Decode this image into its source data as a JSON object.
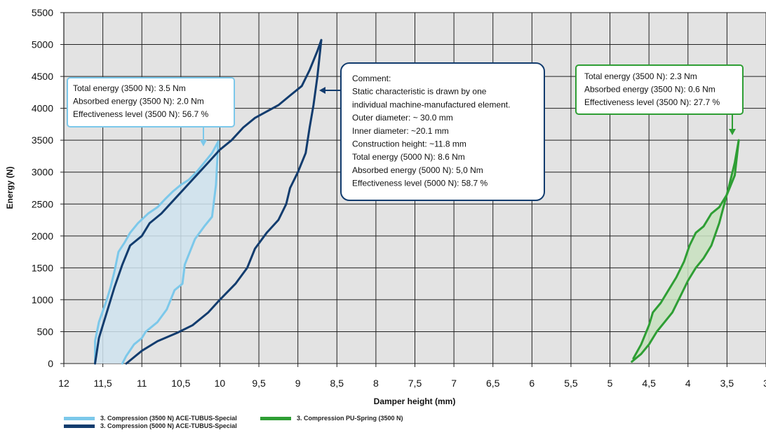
{
  "chart_data": {
    "type": "line",
    "xlabel": "Damper height (mm)",
    "ylabel": "Energy (N)",
    "xlim": [
      12,
      3
    ],
    "ylim": [
      0,
      5500
    ],
    "x_ticks": [
      {
        "v": 12,
        "label": "12"
      },
      {
        "v": 11.5,
        "label": "11,5"
      },
      {
        "v": 11,
        "label": "11"
      },
      {
        "v": 10.5,
        "label": "10,5"
      },
      {
        "v": 10,
        "label": "10"
      },
      {
        "v": 9.5,
        "label": "9,5"
      },
      {
        "v": 9,
        "label": "9"
      },
      {
        "v": 8.5,
        "label": "8,5"
      },
      {
        "v": 8,
        "label": "8"
      },
      {
        "v": 7.5,
        "label": "7,5"
      },
      {
        "v": 7,
        "label": "7"
      },
      {
        "v": 6.5,
        "label": "6,5"
      },
      {
        "v": 6,
        "label": "6"
      },
      {
        "v": 5.5,
        "label": "5,5"
      },
      {
        "v": 5,
        "label": "5"
      },
      {
        "v": 4.5,
        "label": "4,5"
      },
      {
        "v": 4,
        "label": "4"
      },
      {
        "v": 3.5,
        "label": "3,5"
      },
      {
        "v": 3,
        "label": "3"
      }
    ],
    "y_ticks": [
      {
        "v": 0,
        "label": "0"
      },
      {
        "v": 500,
        "label": "500"
      },
      {
        "v": 1000,
        "label": "1000"
      },
      {
        "v": 1500,
        "label": "1500"
      },
      {
        "v": 2000,
        "label": "2000"
      },
      {
        "v": 2500,
        "label": "2500"
      },
      {
        "v": 3000,
        "label": "3000"
      },
      {
        "v": 3500,
        "label": "3500"
      },
      {
        "v": 4000,
        "label": "4000"
      },
      {
        "v": 4500,
        "label": "4500"
      },
      {
        "v": 5000,
        "label": "5000"
      },
      {
        "v": 5500,
        "label": "5500"
      }
    ],
    "grid": true,
    "legend_position": "bottom-left",
    "series": [
      {
        "name": "3. Compression (3500 N) ACE-TUBUS-Special",
        "color": "#7cc8ea",
        "fill": "#cfe3ee",
        "loading": [
          [
            11.6,
            0
          ],
          [
            11.6,
            350
          ],
          [
            11.55,
            650
          ],
          [
            11.45,
            1000
          ],
          [
            11.4,
            1200
          ],
          [
            11.35,
            1450
          ],
          [
            11.3,
            1750
          ],
          [
            11.22,
            1900
          ],
          [
            11.15,
            2050
          ],
          [
            11.05,
            2200
          ],
          [
            10.92,
            2350
          ],
          [
            10.8,
            2450
          ],
          [
            10.7,
            2580
          ],
          [
            10.6,
            2700
          ],
          [
            10.5,
            2800
          ],
          [
            10.4,
            2880
          ],
          [
            10.3,
            3000
          ],
          [
            10.2,
            3150
          ],
          [
            10.1,
            3300
          ],
          [
            10.02,
            3480
          ]
        ],
        "unloading": [
          [
            10.02,
            3480
          ],
          [
            10.05,
            2800
          ],
          [
            10.1,
            2300
          ],
          [
            10.2,
            2150
          ],
          [
            10.32,
            1950
          ],
          [
            10.45,
            1550
          ],
          [
            10.48,
            1250
          ],
          [
            10.58,
            1150
          ],
          [
            10.68,
            850
          ],
          [
            10.8,
            650
          ],
          [
            10.95,
            500
          ],
          [
            11.0,
            400
          ],
          [
            11.1,
            300
          ],
          [
            11.2,
            120
          ],
          [
            11.25,
            0
          ]
        ]
      },
      {
        "name": "3. Compression (5000 N) ACE-TUBUS-Special",
        "color": "#123c6e",
        "loading": [
          [
            11.6,
            0
          ],
          [
            11.55,
            400
          ],
          [
            11.45,
            800
          ],
          [
            11.35,
            1200
          ],
          [
            11.25,
            1550
          ],
          [
            11.15,
            1850
          ],
          [
            11.0,
            2000
          ],
          [
            10.9,
            2200
          ],
          [
            10.75,
            2350
          ],
          [
            10.6,
            2550
          ],
          [
            10.45,
            2750
          ],
          [
            10.3,
            2950
          ],
          [
            10.15,
            3150
          ],
          [
            10.0,
            3350
          ],
          [
            9.85,
            3500
          ],
          [
            9.7,
            3700
          ],
          [
            9.55,
            3850
          ],
          [
            9.4,
            3950
          ],
          [
            9.25,
            4050
          ],
          [
            9.1,
            4200
          ],
          [
            8.95,
            4350
          ],
          [
            8.85,
            4600
          ],
          [
            8.75,
            4900
          ],
          [
            8.7,
            5070
          ]
        ],
        "unloading": [
          [
            8.7,
            5070
          ],
          [
            8.75,
            4500
          ],
          [
            8.8,
            4050
          ],
          [
            8.85,
            3700
          ],
          [
            8.9,
            3300
          ],
          [
            9.0,
            3000
          ],
          [
            9.1,
            2750
          ],
          [
            9.15,
            2500
          ],
          [
            9.25,
            2250
          ],
          [
            9.4,
            2050
          ],
          [
            9.55,
            1800
          ],
          [
            9.65,
            1500
          ],
          [
            9.8,
            1250
          ],
          [
            10.0,
            1000
          ],
          [
            10.15,
            800
          ],
          [
            10.35,
            600
          ],
          [
            10.55,
            480
          ],
          [
            10.8,
            350
          ],
          [
            11.0,
            200
          ],
          [
            11.2,
            0
          ]
        ]
      },
      {
        "name": "3. Compression PU-Spring (3500 N)",
        "color": "#2e9e34",
        "fill": "#c8e0c0",
        "loading": [
          [
            4.7,
            80
          ],
          [
            4.6,
            300
          ],
          [
            4.5,
            600
          ],
          [
            4.45,
            800
          ],
          [
            4.35,
            950
          ],
          [
            4.25,
            1150
          ],
          [
            4.15,
            1350
          ],
          [
            4.05,
            1600
          ],
          [
            3.98,
            1850
          ],
          [
            3.9,
            2050
          ],
          [
            3.8,
            2150
          ],
          [
            3.7,
            2350
          ],
          [
            3.6,
            2450
          ],
          [
            3.5,
            2650
          ],
          [
            3.4,
            2950
          ],
          [
            3.35,
            3500
          ]
        ],
        "unloading": [
          [
            3.35,
            3500
          ],
          [
            3.4,
            3150
          ],
          [
            3.48,
            2750
          ],
          [
            3.6,
            2200
          ],
          [
            3.7,
            1850
          ],
          [
            3.8,
            1650
          ],
          [
            3.9,
            1500
          ],
          [
            4.0,
            1300
          ],
          [
            4.1,
            1050
          ],
          [
            4.2,
            800
          ],
          [
            4.3,
            650
          ],
          [
            4.4,
            500
          ],
          [
            4.5,
            300
          ],
          [
            4.6,
            150
          ],
          [
            4.72,
            30
          ]
        ]
      }
    ],
    "annotations": [
      {
        "id": "tubus-3500",
        "color": "#7cc8ea",
        "lines": [
          "Total energy (3500 N): 3.5 Nm",
          "Absorbed energy (3500 N): 2.0 Nm",
          "Effectiveness level (3500 N): 56.7 %"
        ]
      },
      {
        "id": "comment",
        "color": "#123c6e",
        "lines": [
          "Comment:",
          "Static characteristic is drawn by one",
          "individual machine-manufactured element.",
          "Outer diameter: ~ 30.0 mm",
          "Inner diameter: ~20.1 mm",
          "Construction height: ~11.8 mm",
          "Total energy (5000 N): 8.6 Nm",
          "Absorbed energy (5000 N): 5,0 Nm",
          "Effectiveness level (5000 N): 58.7 %"
        ]
      },
      {
        "id": "pu-3500",
        "color": "#2e9e34",
        "lines": [
          "Total energy (3500 N): 2.3 Nm",
          "Absorbed energy (3500 N): 0.6 Nm",
          "Effectiveness level (3500 N): 27.7 %"
        ]
      }
    ]
  }
}
